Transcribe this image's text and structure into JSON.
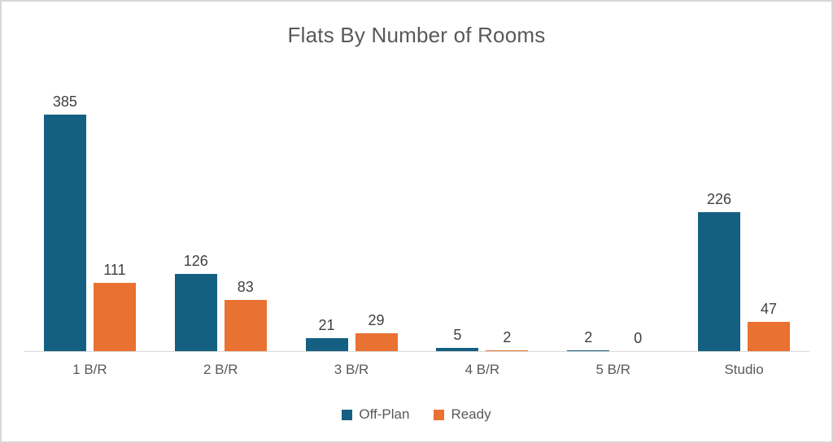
{
  "chart_data": {
    "type": "bar",
    "title": "Flats By Number of Rooms",
    "categories": [
      "1 B/R",
      "2 B/R",
      "3 B/R",
      "4 B/R",
      "5 B/R",
      "Studio"
    ],
    "series": [
      {
        "name": "Off-Plan",
        "color": "#156082",
        "values": [
          385,
          126,
          21,
          5,
          2,
          226
        ]
      },
      {
        "name": "Ready",
        "color": "#E97132",
        "values": [
          111,
          83,
          29,
          2,
          0,
          47
        ]
      }
    ],
    "ylim": [
      0,
      385
    ],
    "xlabel": "",
    "ylabel": "",
    "data_labels": true,
    "grid": false,
    "legend_position": "bottom"
  },
  "colors": {
    "title_text": "#595959",
    "value_label_text": "#404040",
    "category_label_text": "#595959",
    "axis_line": "#d9d9d9",
    "frame_border": "#d8d8d8",
    "background": "#ffffff"
  }
}
